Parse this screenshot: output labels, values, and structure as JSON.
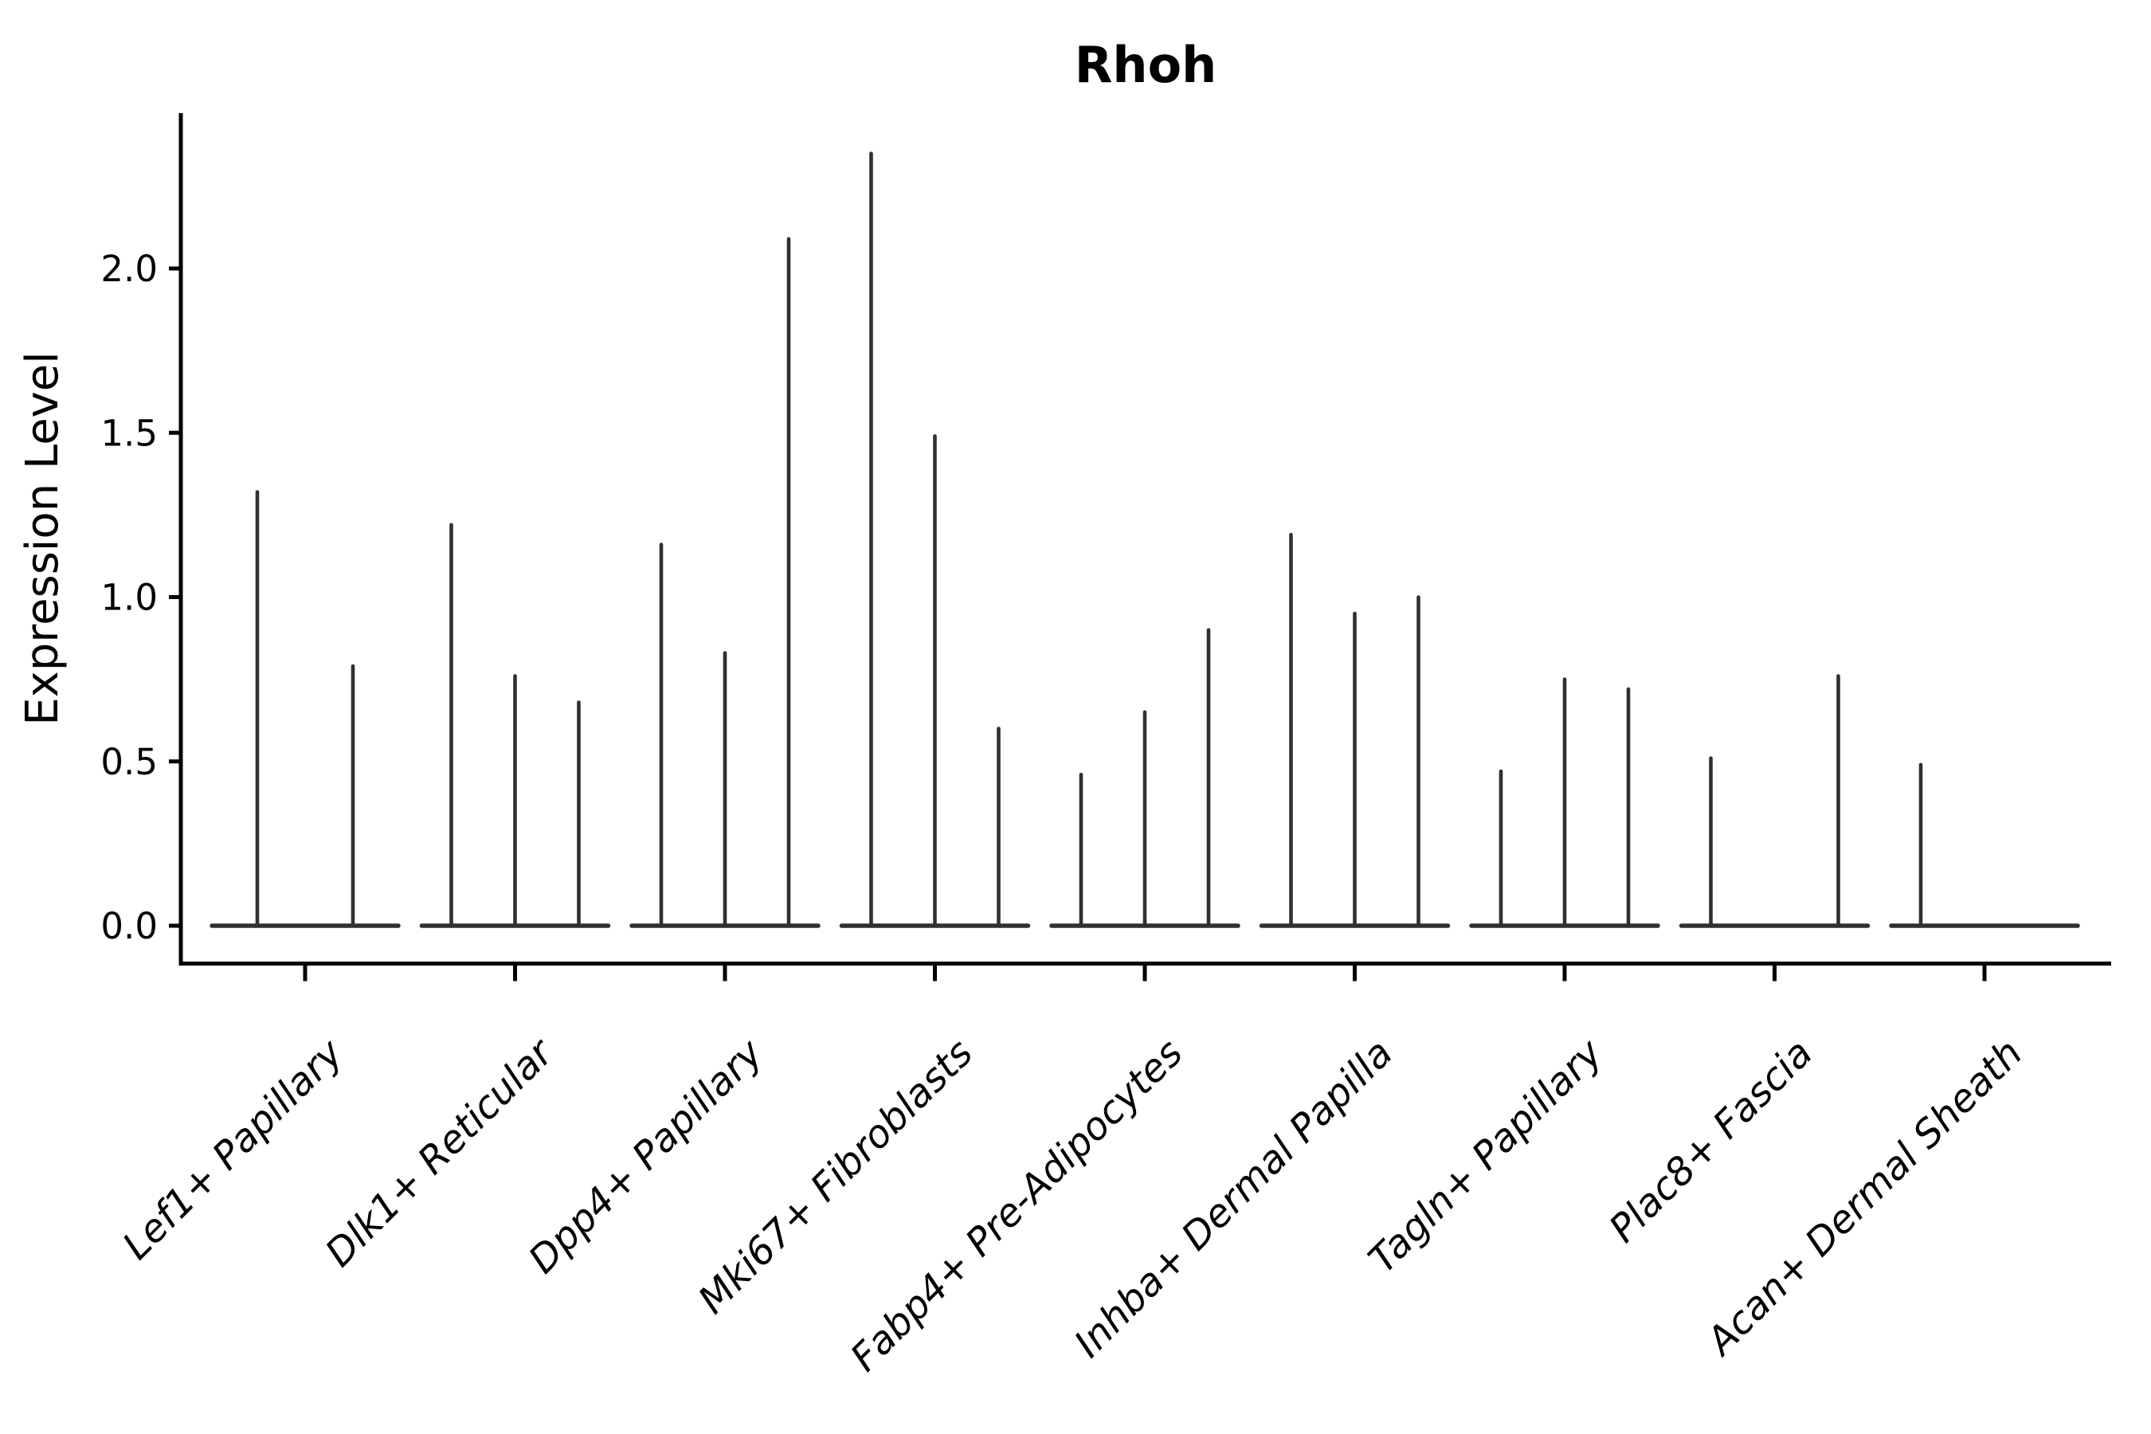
{
  "figure": {
    "title": "Rhoh",
    "y_axis_label": "Expression Level"
  },
  "style": {
    "background": "#ffffff",
    "violin_line_color": "#303030",
    "axis_color": "#000000",
    "text_color": "#000000"
  },
  "chart_data": {
    "type": "violin",
    "title": "Rhoh",
    "xlabel": "",
    "ylabel": "Expression Level",
    "ylim": [
      -0.12,
      2.47
    ],
    "ytick_values": [
      0.0,
      0.5,
      1.0,
      1.5,
      2.0
    ],
    "ytick_labels": [
      "0.0",
      "0.5",
      "1.0",
      "1.5",
      "2.0"
    ],
    "grid": false,
    "legend": "none",
    "x_tick_rotation": 45,
    "baseline_value": 0.0,
    "categories": [
      "Lef1+ Papillary",
      "Dlk1+ Reticular",
      "Dpp4+ Papillary",
      "Mki67+ Fibroblasts",
      "Fabp4+ Pre-Adipocytes",
      "Inhba+ Dermal Papilla",
      "Tagln+ Papillary",
      "Plac8+ Fascia",
      "Acan+ Dermal Sheath"
    ],
    "groups": [
      {
        "label": "Lef1+ Papillary",
        "violin_maxima": [
          1.32,
          0.79
        ]
      },
      {
        "label": "Dlk1+ Reticular",
        "violin_maxima": [
          1.22,
          0.76,
          0.68
        ]
      },
      {
        "label": "Dpp4+ Papillary",
        "violin_maxima": [
          1.16,
          0.83,
          2.09
        ]
      },
      {
        "label": "Mki67+ Fibroblasts",
        "violin_maxima": [
          2.35,
          1.49,
          0.6
        ]
      },
      {
        "label": "Fabp4+ Pre-Adipocytes",
        "violin_maxima": [
          0.46,
          0.65,
          0.9
        ]
      },
      {
        "label": "Inhba+ Dermal Papilla",
        "violin_maxima": [
          1.19,
          0.95,
          1.0
        ]
      },
      {
        "label": "Tagln+ Papillary",
        "violin_maxima": [
          0.47,
          0.75,
          0.72
        ]
      },
      {
        "label": "Plac8+ Fascia",
        "violin_maxima": [
          0.51,
          0.0,
          0.76
        ]
      },
      {
        "label": "Acan+ Dermal Sheath",
        "violin_maxima": [
          0.49,
          0.0,
          0.0
        ]
      }
    ]
  }
}
